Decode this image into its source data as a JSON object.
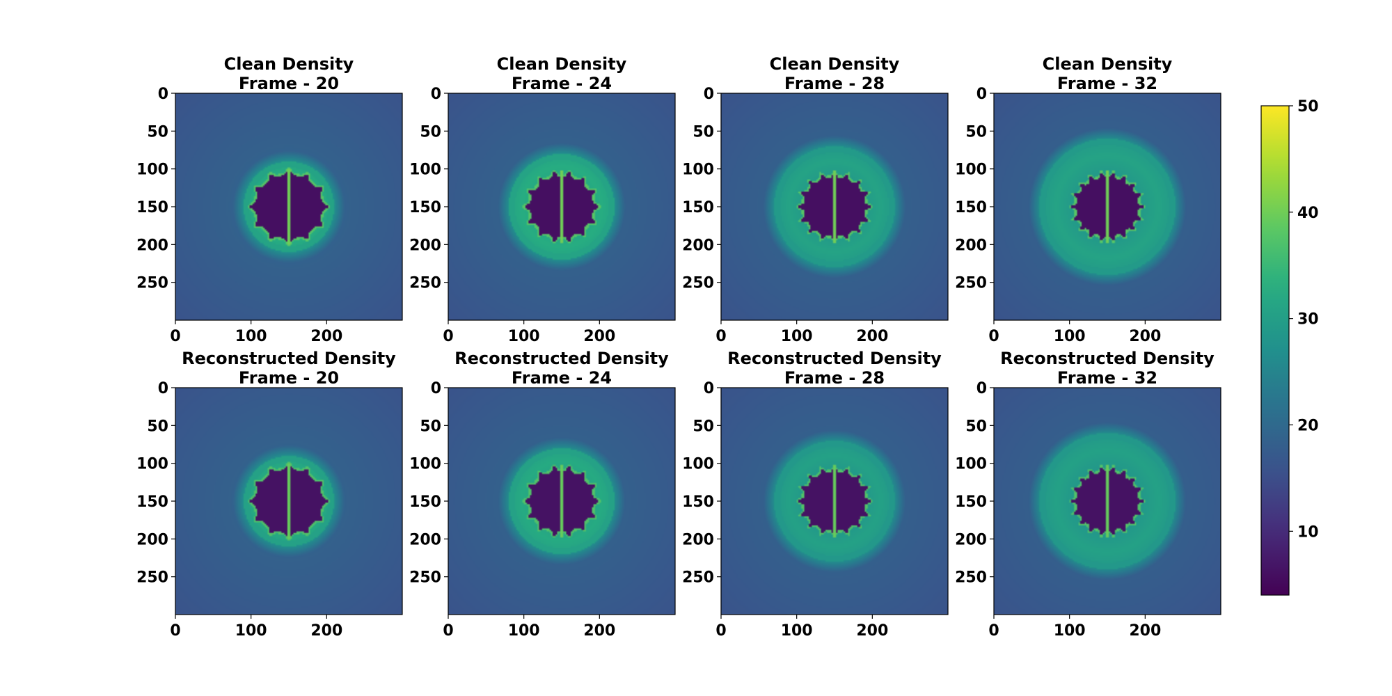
{
  "chart_data": {
    "type": "heatmap",
    "colormap": "viridis",
    "colorbar": {
      "vmin": 4,
      "vmax": 50,
      "ticks": [
        10,
        20,
        30,
        40,
        50
      ],
      "tick_labels": [
        "10",
        "20",
        "30",
        "40",
        "50"
      ]
    },
    "x_ticks": [
      0,
      100,
      200
    ],
    "y_ticks": [
      0,
      50,
      100,
      150,
      200,
      250
    ],
    "x_tick_labels": [
      "0",
      "100",
      "200"
    ],
    "y_tick_labels": [
      "0",
      "50",
      "100",
      "150",
      "200",
      "250"
    ],
    "xlim": [
      0,
      300
    ],
    "ylim": [
      300,
      0
    ],
    "grid_size": [
      300,
      300
    ],
    "panels": [
      {
        "title_line1": "Clean Density",
        "title_line2": "Frame - 20",
        "frame": 20,
        "kind": "clean",
        "dark_radius": 45,
        "ring_radius": 60,
        "ring_level": 33,
        "spikes": 12
      },
      {
        "title_line1": "Clean Density",
        "title_line2": "Frame - 24",
        "frame": 24,
        "kind": "clean",
        "dark_radius": 43,
        "ring_radius": 70,
        "ring_level": 33,
        "spikes": 14
      },
      {
        "title_line1": "Clean Density",
        "title_line2": "Frame - 28",
        "frame": 28,
        "kind": "clean",
        "dark_radius": 42,
        "ring_radius": 80,
        "ring_level": 31,
        "spikes": 16
      },
      {
        "title_line1": "Clean Density",
        "title_line2": "Frame - 32",
        "frame": 32,
        "kind": "clean",
        "dark_radius": 42,
        "ring_radius": 90,
        "ring_level": 31,
        "spikes": 18
      },
      {
        "title_line1": "Reconstructed Density",
        "title_line2": "Frame - 20",
        "frame": 20,
        "kind": "reconstructed",
        "dark_radius": 45,
        "ring_radius": 60,
        "ring_level": 33,
        "spikes": 12
      },
      {
        "title_line1": "Reconstructed Density",
        "title_line2": "Frame - 24",
        "frame": 24,
        "kind": "reconstructed",
        "dark_radius": 43,
        "ring_radius": 70,
        "ring_level": 33,
        "spikes": 14
      },
      {
        "title_line1": "Reconstructed Density",
        "title_line2": "Frame - 28",
        "frame": 28,
        "kind": "reconstructed",
        "dark_radius": 42,
        "ring_radius": 80,
        "ring_level": 31,
        "spikes": 16
      },
      {
        "title_line1": "Reconstructed Density",
        "title_line2": "Frame - 32",
        "frame": 32,
        "kind": "reconstructed",
        "dark_radius": 42,
        "ring_radius": 90,
        "ring_level": 31,
        "spikes": 18
      }
    ]
  }
}
